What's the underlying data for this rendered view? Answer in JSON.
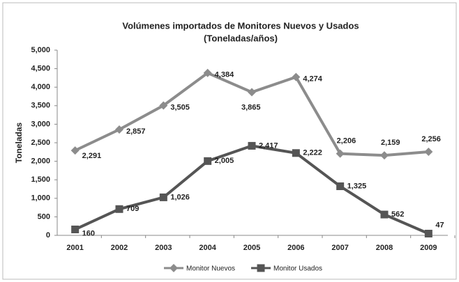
{
  "chart_data": {
    "type": "line",
    "title": [
      "Volúmenes  importados  de Monitores Nuevos y Usados",
      "(Toneladas/años)"
    ],
    "ylabel": "Toneladas",
    "categories": [
      "2001",
      "2002",
      "2003",
      "2004",
      "2005",
      "2006",
      "2007",
      "2008",
      "2009"
    ],
    "series": [
      {
        "name": "Monitor Nuevos",
        "color": "#8c8c8c",
        "marker": "diamond",
        "values": [
          2291,
          2857,
          3505,
          4384,
          3865,
          4274,
          2206,
          2159,
          2256
        ],
        "value_labels": [
          "2,291",
          "2,857",
          "3,505",
          "4,384",
          "3,865",
          "4,274",
          "2,206",
          "2,159",
          "2,256"
        ]
      },
      {
        "name": "Monitor Usados",
        "color": "#555555",
        "marker": "square",
        "values": [
          160,
          709,
          1026,
          2005,
          2417,
          2222,
          1325,
          562,
          47
        ],
        "value_labels": [
          "160",
          "709",
          "1,026",
          "2,005",
          "2,417",
          "2,222",
          "1,325",
          "562",
          "47"
        ]
      }
    ],
    "ylim": [
      0,
      5000
    ],
    "yticks": [
      0,
      500,
      {
        "value": 1000,
        "label": "1,000"
      },
      {
        "value": 1500,
        "label": "1,500"
      },
      {
        "value": 2000,
        "label": "2,000"
      },
      {
        "value": 2500,
        "label": "2,500"
      },
      {
        "value": 3000,
        "label": "3,000"
      },
      {
        "value": 3500,
        "label": "3,500"
      },
      {
        "value": 4000,
        "label": "4,000"
      },
      {
        "value": 4500,
        "label": "4,500"
      },
      {
        "value": 5000,
        "label": "5,000"
      }
    ],
    "legend": "bottom"
  }
}
